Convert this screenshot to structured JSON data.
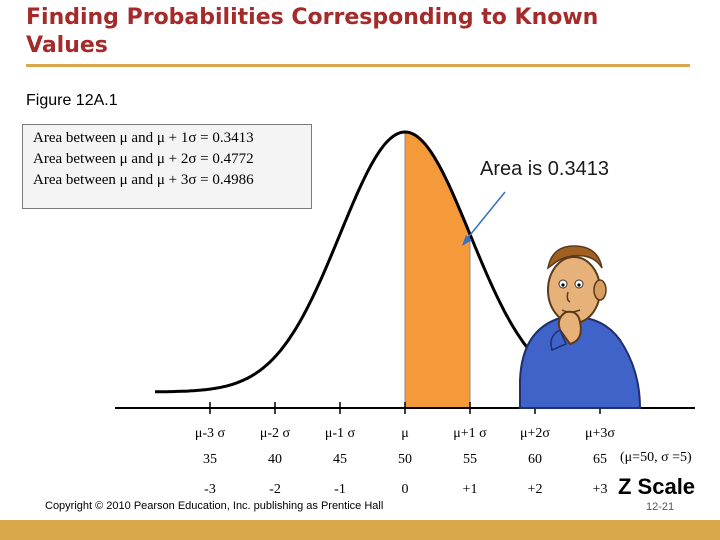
{
  "slide": {
    "title": "Finding Probabilities Corresponding to Known Values",
    "figure_label": "Figure 12A.1",
    "area_callout": "Area is 0.3413",
    "copyright": "Copyright © 2010 Pearson Education, Inc. publishing as Prentice Hall",
    "slide_number": "12-21",
    "z_scale_label": "Z Scale",
    "params_note": "(μ=50, σ =5)"
  },
  "info_box": {
    "lines": [
      "Area between μ and μ + 1σ = 0.3413",
      "Area between μ and μ + 2σ = 0.4772",
      "Area between μ and μ + 3σ = 0.4986"
    ]
  },
  "axis": {
    "sigma_labels": [
      "μ-3 σ",
      "μ-2 σ",
      "μ-1 σ",
      "μ",
      "μ+1 σ",
      "μ+2σ",
      "μ+3σ"
    ],
    "x_values": [
      "35",
      "40",
      "45",
      "50",
      "55",
      "60",
      "65"
    ],
    "z_values": [
      "-3",
      "-2",
      "-1",
      "0",
      "+1",
      "+2",
      "+3"
    ]
  },
  "chart_data": {
    "type": "area",
    "mean": 50,
    "sd": 5,
    "x_range": [
      35,
      65
    ],
    "shaded_interval": [
      50,
      55
    ],
    "shaded_area": 0.3413
  },
  "colors": {
    "shade": "#f49a3a",
    "shade_edge": "#8a8a8a",
    "title": "#a52a2a",
    "accent_bar": "#d8a84a",
    "arrow": "#3a6fc2"
  },
  "illustration": {
    "icon": "thinking-man-icon"
  }
}
